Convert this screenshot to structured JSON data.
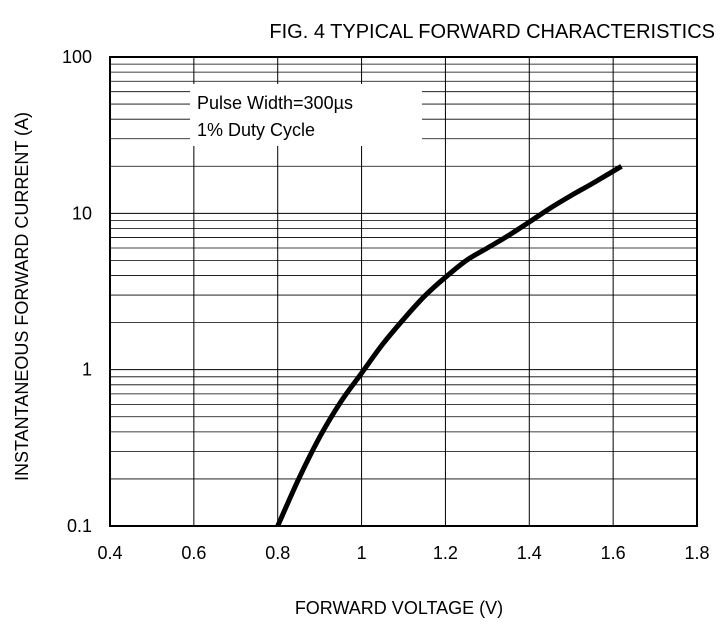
{
  "chart_data": {
    "type": "line",
    "title": "FIG. 4 TYPICAL FORWARD CHARACTERISTICS",
    "xlabel": "FORWARD VOLTAGE (V)",
    "ylabel": "INSTANTANEOUS FORWARD CURRENT (A)",
    "x_scale": "linear",
    "y_scale": "log",
    "xlim": [
      0.4,
      1.8
    ],
    "ylim": [
      0.1,
      100
    ],
    "x_ticks": [
      "0.4",
      "0.6",
      "0.8",
      "1",
      "1.2",
      "1.4",
      "1.6",
      "1.8"
    ],
    "y_ticks": [
      "0.1",
      "1",
      "10",
      "100"
    ],
    "grid": true,
    "annotation": [
      "Pulse Width=300µs",
      "1% Duty Cycle"
    ],
    "series": [
      {
        "color": "#000000",
        "x": [
          0.8,
          0.85,
          0.9,
          0.95,
          1.0,
          1.05,
          1.1,
          1.15,
          1.2,
          1.25,
          1.3,
          1.35,
          1.4,
          1.45,
          1.5,
          1.55,
          1.62
        ],
        "y": [
          0.1,
          0.2,
          0.37,
          0.62,
          0.95,
          1.45,
          2.1,
          2.95,
          3.9,
          5.0,
          6.0,
          7.2,
          8.8,
          10.8,
          13.0,
          15.5,
          20.0
        ]
      }
    ]
  }
}
